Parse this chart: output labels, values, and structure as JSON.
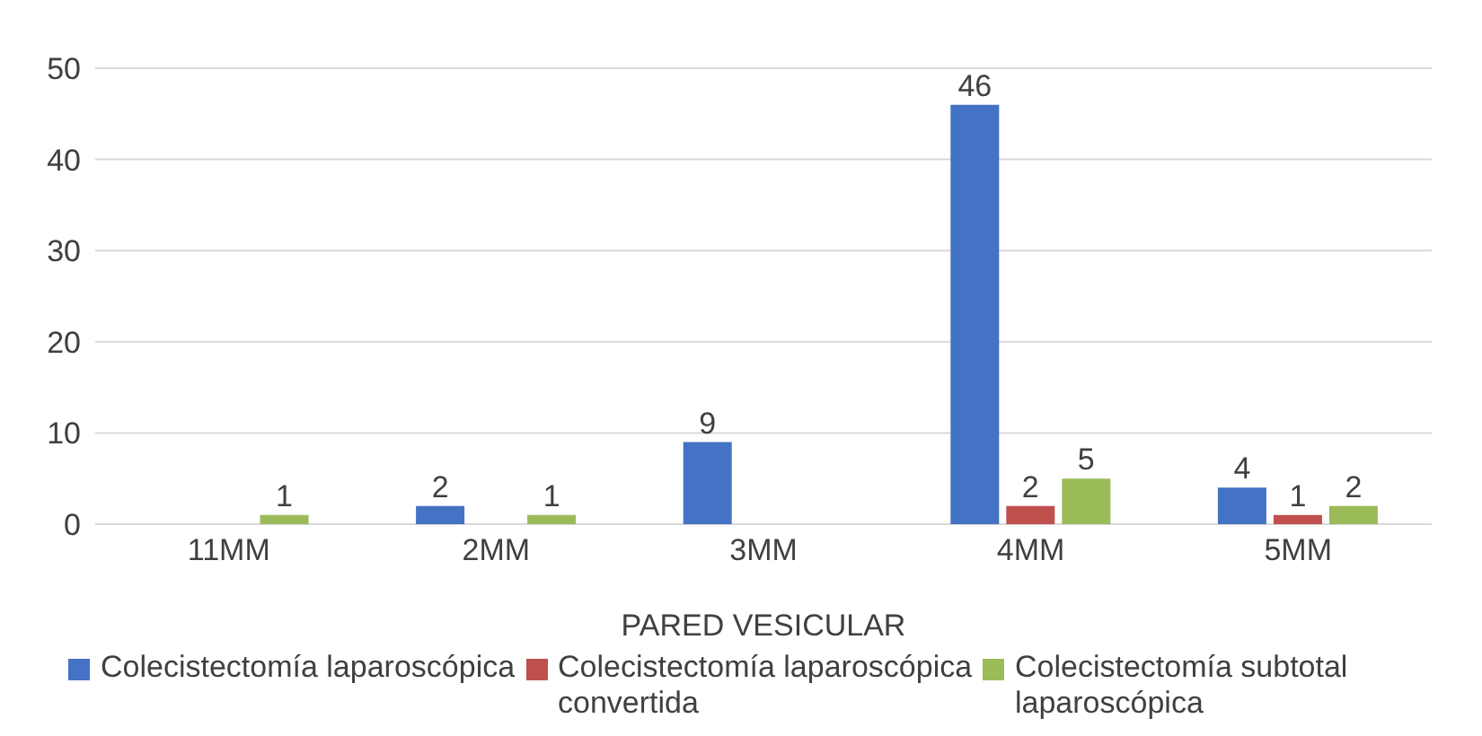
{
  "chart_data": {
    "type": "bar",
    "xlabel": "PARED VESICULAR",
    "categories": [
      "11MM",
      "2MM",
      "3MM",
      "4MM",
      "5MM"
    ],
    "series": [
      {
        "name": "Colecistectomía laparoscópica",
        "color": "#4472c4",
        "values": [
          null,
          2,
          9,
          46,
          4
        ]
      },
      {
        "name": "Colecistectomía laparoscópica convertida",
        "color": "#c0504d",
        "values": [
          null,
          null,
          null,
          2,
          1
        ]
      },
      {
        "name": "Colecistectomía subtotal laparoscópica",
        "color": "#9bbb59",
        "values": [
          1,
          1,
          null,
          5,
          2
        ]
      }
    ],
    "ylim": [
      0,
      50
    ],
    "yticks": [
      0,
      10,
      20,
      30,
      40,
      50
    ],
    "grid": "y",
    "legend": "bottom",
    "data_labels": true
  }
}
